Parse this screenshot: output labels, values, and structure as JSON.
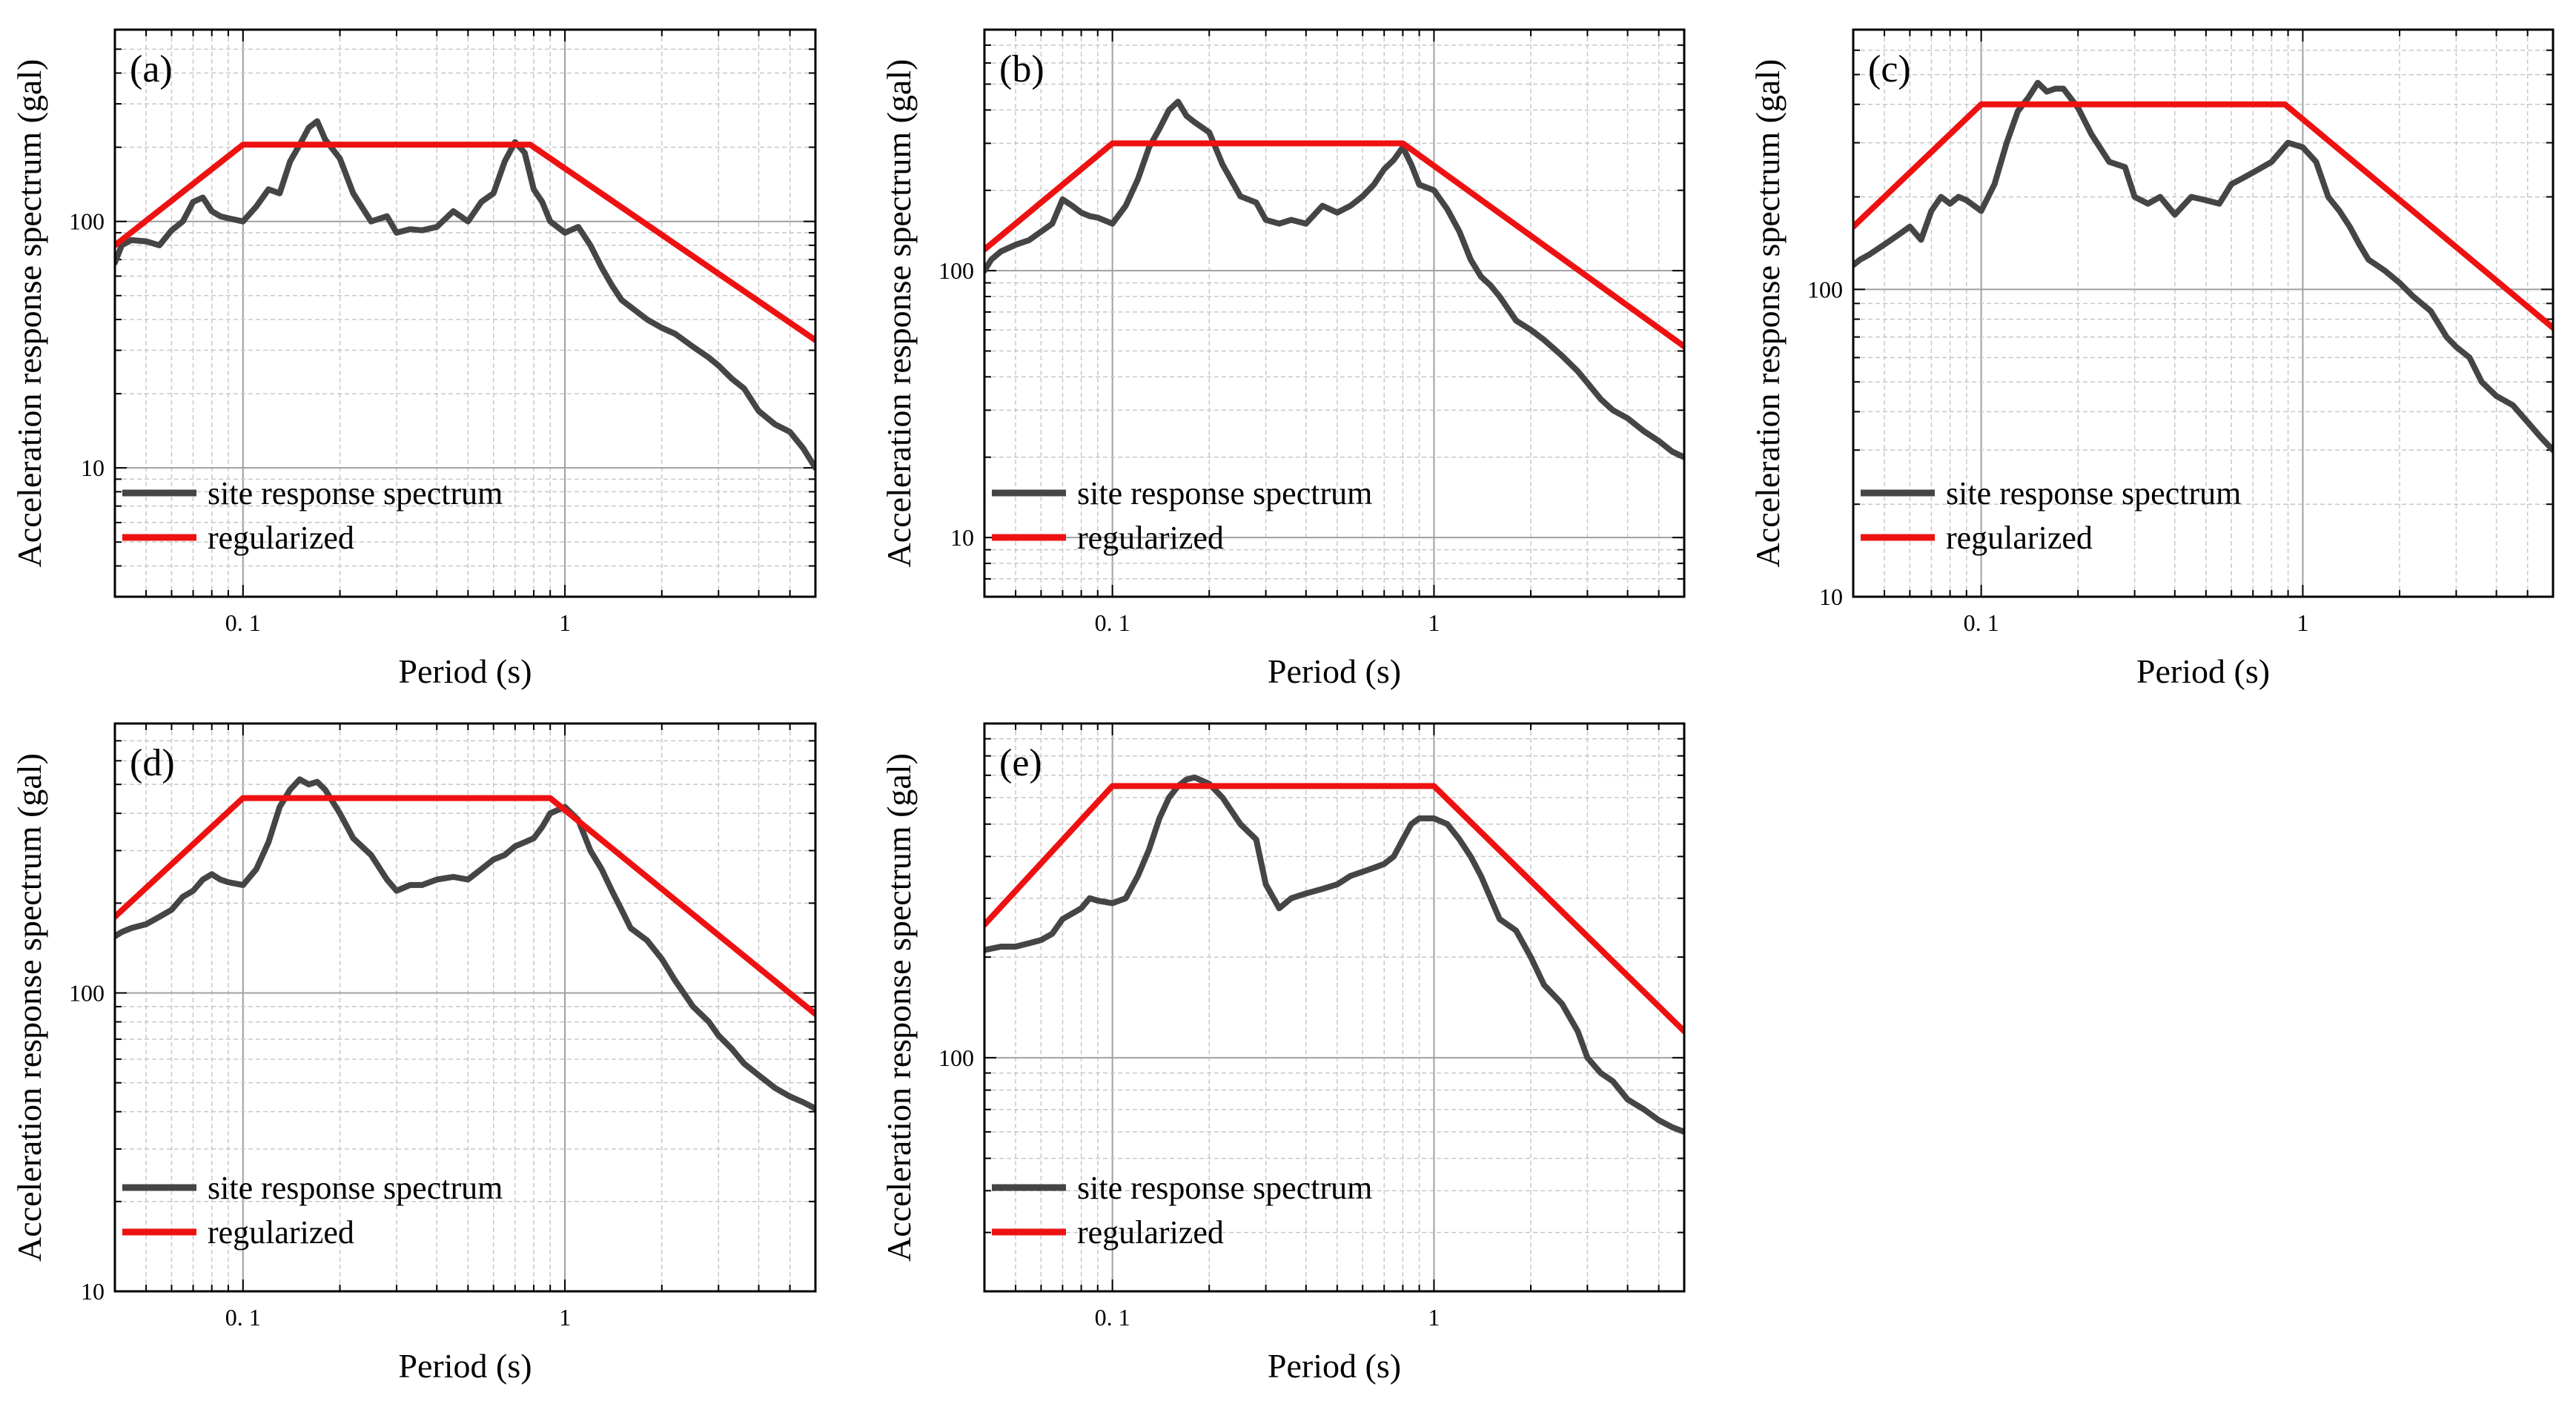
{
  "figure": {
    "panel_xlabel": "Period (s)",
    "panel_ylabel": "Acceleration response spectrum (gal)",
    "legend_site": "site response spectrum",
    "legend_reg": "regularized"
  },
  "colors": {
    "site": "#454545",
    "regularized": "#ee1111",
    "major_grid": "#a0a0a0",
    "minor_grid": "#c8c8c8",
    "axis": "#000000"
  },
  "chart_data": [
    {
      "type": "line",
      "panel_label": "(a)",
      "xscale": "log",
      "yscale": "log",
      "xlim": [
        0.04,
        6
      ],
      "ylim": [
        3,
        600
      ],
      "xticks": [
        {
          "v": 0.1,
          "label": "0. 1"
        },
        {
          "v": 1,
          "label": "1"
        }
      ],
      "yticks": [
        {
          "v": 10,
          "label": "10"
        },
        {
          "v": 100,
          "label": "100"
        }
      ],
      "grid": true,
      "legend": "lower-left",
      "series": [
        {
          "name": "site response spectrum",
          "x": [
            0.04,
            0.042,
            0.045,
            0.05,
            0.055,
            0.06,
            0.065,
            0.07,
            0.075,
            0.08,
            0.085,
            0.09,
            0.1,
            0.11,
            0.12,
            0.13,
            0.14,
            0.15,
            0.16,
            0.17,
            0.18,
            0.2,
            0.22,
            0.25,
            0.28,
            0.3,
            0.33,
            0.36,
            0.4,
            0.45,
            0.5,
            0.55,
            0.6,
            0.65,
            0.7,
            0.75,
            0.8,
            0.85,
            0.9,
            1.0,
            1.1,
            1.2,
            1.3,
            1.4,
            1.5,
            1.6,
            1.8,
            2.0,
            2.2,
            2.5,
            2.8,
            3.0,
            3.3,
            3.6,
            4.0,
            4.5,
            5.0,
            5.5,
            6.0
          ],
          "y": [
            68,
            80,
            84,
            83,
            80,
            92,
            100,
            120,
            125,
            110,
            105,
            103,
            100,
            115,
            135,
            130,
            175,
            205,
            240,
            255,
            215,
            180,
            130,
            100,
            105,
            90,
            93,
            92,
            95,
            110,
            100,
            120,
            130,
            175,
            210,
            190,
            135,
            120,
            100,
            90,
            95,
            80,
            65,
            55,
            48,
            45,
            40,
            37,
            35,
            31,
            28,
            26,
            23,
            21,
            17,
            15,
            14,
            12,
            10
          ]
        },
        {
          "name": "regularized",
          "x": [
            0.04,
            0.1,
            0.78,
            6
          ],
          "y": [
            80,
            205,
            205,
            33
          ]
        }
      ]
    },
    {
      "type": "line",
      "panel_label": "(b)",
      "xscale": "log",
      "yscale": "log",
      "xlim": [
        0.04,
        6
      ],
      "ylim": [
        6,
        800
      ],
      "xticks": [
        {
          "v": 0.1,
          "label": "0. 1"
        },
        {
          "v": 1,
          "label": "1"
        }
      ],
      "yticks": [
        {
          "v": 10,
          "label": "10"
        },
        {
          "v": 100,
          "label": "100"
        }
      ],
      "grid": true,
      "legend": "lower-left",
      "series": [
        {
          "name": "site response spectrum",
          "x": [
            0.04,
            0.042,
            0.045,
            0.05,
            0.055,
            0.06,
            0.065,
            0.07,
            0.075,
            0.08,
            0.085,
            0.09,
            0.1,
            0.11,
            0.12,
            0.13,
            0.14,
            0.15,
            0.16,
            0.17,
            0.18,
            0.2,
            0.22,
            0.25,
            0.28,
            0.3,
            0.33,
            0.36,
            0.4,
            0.45,
            0.5,
            0.55,
            0.6,
            0.65,
            0.7,
            0.75,
            0.8,
            0.85,
            0.9,
            1.0,
            1.1,
            1.2,
            1.3,
            1.4,
            1.5,
            1.6,
            1.8,
            2.0,
            2.2,
            2.5,
            2.8,
            3.0,
            3.3,
            3.6,
            4.0,
            4.5,
            5.0,
            5.5,
            6.0
          ],
          "y": [
            100,
            110,
            118,
            125,
            130,
            140,
            150,
            185,
            175,
            165,
            160,
            158,
            150,
            175,
            220,
            290,
            340,
            400,
            430,
            380,
            360,
            330,
            250,
            190,
            180,
            155,
            150,
            155,
            150,
            175,
            165,
            175,
            190,
            210,
            240,
            260,
            290,
            250,
            210,
            200,
            170,
            140,
            110,
            95,
            88,
            80,
            65,
            60,
            55,
            48,
            42,
            38,
            33,
            30,
            28,
            25,
            23,
            21,
            20
          ]
        },
        {
          "name": "regularized",
          "x": [
            0.04,
            0.1,
            0.8,
            6
          ],
          "y": [
            120,
            300,
            300,
            52
          ]
        }
      ]
    },
    {
      "type": "line",
      "panel_label": "(c)",
      "xscale": "log",
      "yscale": "log",
      "xlim": [
        0.04,
        6
      ],
      "ylim": [
        10,
        700
      ],
      "xticks": [
        {
          "v": 0.1,
          "label": "0. 1"
        },
        {
          "v": 1,
          "label": "1"
        }
      ],
      "yticks": [
        {
          "v": 10,
          "label": "10"
        },
        {
          "v": 100,
          "label": "100"
        }
      ],
      "grid": true,
      "legend": "lower-left",
      "series": [
        {
          "name": "site response spectrum",
          "x": [
            0.04,
            0.042,
            0.045,
            0.05,
            0.055,
            0.06,
            0.065,
            0.07,
            0.075,
            0.08,
            0.085,
            0.09,
            0.1,
            0.11,
            0.12,
            0.13,
            0.14,
            0.15,
            0.16,
            0.17,
            0.18,
            0.2,
            0.22,
            0.25,
            0.28,
            0.3,
            0.33,
            0.36,
            0.4,
            0.45,
            0.5,
            0.55,
            0.6,
            0.65,
            0.7,
            0.75,
            0.8,
            0.85,
            0.9,
            1.0,
            1.1,
            1.2,
            1.3,
            1.4,
            1.5,
            1.6,
            1.8,
            2.0,
            2.2,
            2.5,
            2.8,
            3.0,
            3.3,
            3.6,
            4.0,
            4.5,
            5.0,
            5.5,
            6.0
          ],
          "y": [
            120,
            125,
            130,
            140,
            150,
            160,
            145,
            180,
            200,
            190,
            200,
            195,
            180,
            220,
            300,
            380,
            420,
            470,
            440,
            450,
            450,
            390,
            320,
            260,
            250,
            200,
            190,
            200,
            175,
            200,
            195,
            190,
            220,
            230,
            240,
            250,
            260,
            280,
            300,
            290,
            260,
            200,
            180,
            160,
            140,
            125,
            115,
            105,
            95,
            85,
            70,
            65,
            60,
            50,
            45,
            42,
            37,
            33,
            30
          ]
        },
        {
          "name": "regularized",
          "x": [
            0.04,
            0.1,
            0.88,
            6
          ],
          "y": [
            160,
            400,
            400,
            75
          ]
        }
      ]
    },
    {
      "type": "line",
      "panel_label": "(d)",
      "xscale": "log",
      "yscale": "log",
      "xlim": [
        0.04,
        6
      ],
      "ylim": [
        10,
        800
      ],
      "xticks": [
        {
          "v": 0.1,
          "label": "0. 1"
        },
        {
          "v": 1,
          "label": "1"
        }
      ],
      "yticks": [
        {
          "v": 10,
          "label": "10"
        },
        {
          "v": 100,
          "label": "100"
        }
      ],
      "grid": true,
      "legend": "lower-left",
      "series": [
        {
          "name": "site response spectrum",
          "x": [
            0.04,
            0.042,
            0.045,
            0.05,
            0.055,
            0.06,
            0.065,
            0.07,
            0.075,
            0.08,
            0.085,
            0.09,
            0.1,
            0.11,
            0.12,
            0.13,
            0.14,
            0.15,
            0.16,
            0.17,
            0.18,
            0.2,
            0.22,
            0.25,
            0.28,
            0.3,
            0.33,
            0.36,
            0.4,
            0.45,
            0.5,
            0.55,
            0.6,
            0.65,
            0.7,
            0.75,
            0.8,
            0.85,
            0.9,
            1.0,
            1.1,
            1.2,
            1.3,
            1.4,
            1.5,
            1.6,
            1.8,
            2.0,
            2.2,
            2.5,
            2.8,
            3.0,
            3.3,
            3.6,
            4.0,
            4.5,
            5.0,
            5.5,
            6.0
          ],
          "y": [
            155,
            160,
            165,
            170,
            180,
            190,
            210,
            220,
            240,
            250,
            240,
            235,
            230,
            260,
            320,
            420,
            480,
            520,
            500,
            510,
            480,
            400,
            330,
            290,
            240,
            220,
            230,
            230,
            240,
            245,
            240,
            260,
            280,
            290,
            310,
            320,
            330,
            360,
            400,
            420,
            380,
            300,
            260,
            220,
            190,
            165,
            150,
            130,
            110,
            90,
            80,
            72,
            65,
            58,
            53,
            48,
            45,
            43,
            41
          ]
        },
        {
          "name": "regularized",
          "x": [
            0.04,
            0.1,
            0.9,
            6
          ],
          "y": [
            180,
            450,
            450,
            85
          ]
        }
      ]
    },
    {
      "type": "line",
      "panel_label": "(e)",
      "xscale": "log",
      "yscale": "log",
      "xlim": [
        0.04,
        6
      ],
      "ylim": [
        20,
        1000
      ],
      "xticks": [
        {
          "v": 0.1,
          "label": "0. 1"
        },
        {
          "v": 1,
          "label": "1"
        }
      ],
      "yticks": [
        {
          "v": 100,
          "label": "100"
        }
      ],
      "grid": true,
      "legend": "lower-left",
      "series": [
        {
          "name": "site response spectrum",
          "x": [
            0.04,
            0.042,
            0.045,
            0.05,
            0.055,
            0.06,
            0.065,
            0.07,
            0.075,
            0.08,
            0.085,
            0.09,
            0.1,
            0.11,
            0.12,
            0.13,
            0.14,
            0.15,
            0.16,
            0.17,
            0.18,
            0.2,
            0.22,
            0.25,
            0.28,
            0.3,
            0.33,
            0.36,
            0.4,
            0.45,
            0.5,
            0.55,
            0.6,
            0.65,
            0.7,
            0.75,
            0.8,
            0.85,
            0.9,
            1.0,
            1.1,
            1.2,
            1.3,
            1.4,
            1.5,
            1.6,
            1.8,
            2.0,
            2.2,
            2.5,
            2.8,
            3.0,
            3.3,
            3.6,
            4.0,
            4.5,
            5.0,
            5.5,
            6.0
          ],
          "y": [
            210,
            212,
            215,
            215,
            220,
            225,
            235,
            260,
            270,
            280,
            300,
            295,
            290,
            300,
            350,
            420,
            520,
            600,
            650,
            680,
            690,
            660,
            600,
            500,
            450,
            330,
            280,
            300,
            310,
            320,
            330,
            350,
            360,
            370,
            380,
            400,
            450,
            500,
            520,
            520,
            500,
            450,
            400,
            350,
            300,
            260,
            240,
            200,
            165,
            145,
            120,
            100,
            90,
            85,
            75,
            70,
            65,
            62,
            60
          ]
        },
        {
          "name": "regularized",
          "x": [
            0.04,
            0.1,
            1.0,
            6
          ],
          "y": [
            250,
            650,
            650,
            120
          ]
        }
      ]
    }
  ]
}
